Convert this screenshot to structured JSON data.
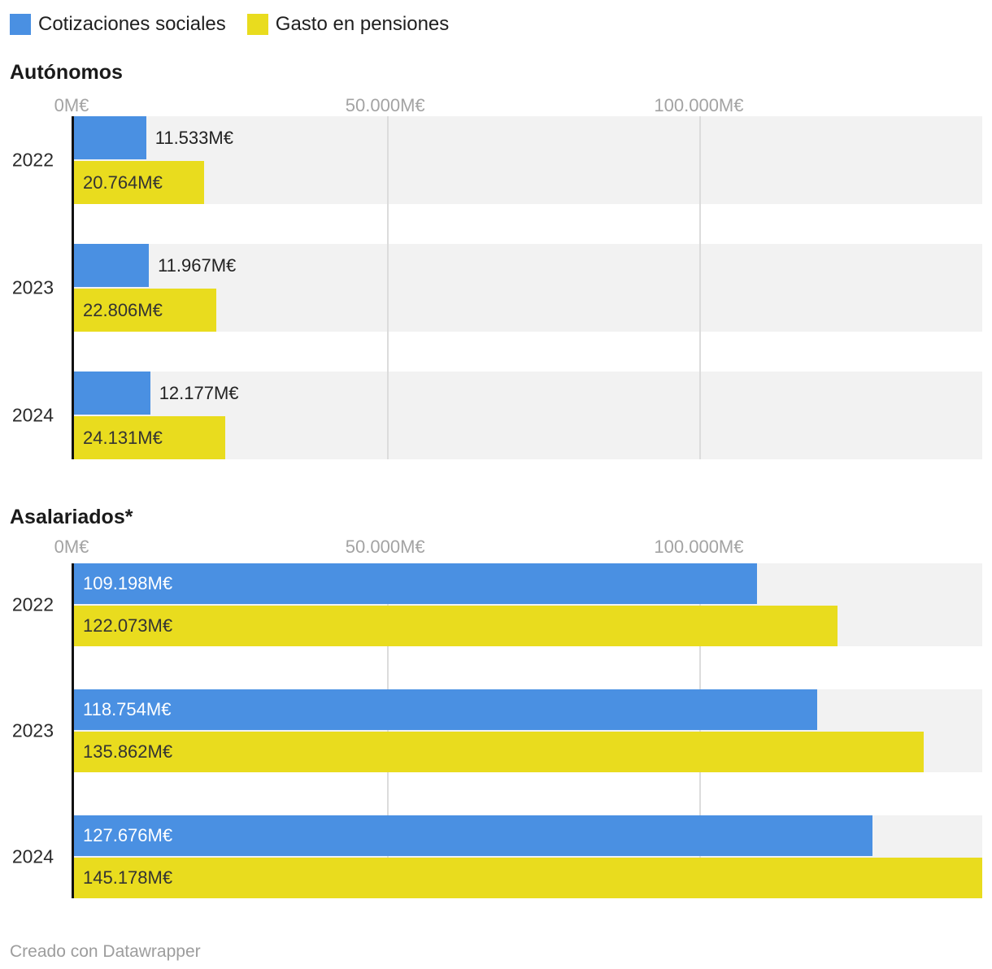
{
  "legend": {
    "items": [
      {
        "label": "Cotizaciones sociales",
        "color": "#4a90e2"
      },
      {
        "label": "Gasto en pensiones",
        "color": "#e9dc1e"
      }
    ]
  },
  "footer": {
    "text": "Creado con Datawrapper"
  },
  "chart_data": {
    "type": "bar",
    "orientation": "horizontal",
    "unit": "M€",
    "legend_position": "top",
    "axis": {
      "min": 0,
      "max": 145178,
      "grid": true,
      "ticks": [
        {
          "value": 0,
          "label": "0M€"
        },
        {
          "value": 50000,
          "label": "50.000M€"
        },
        {
          "value": 100000,
          "label": "100.000M€"
        }
      ]
    },
    "colors": {
      "blue": "#4a90e2",
      "yellow": "#e9dc1e",
      "row_band": "#f2f2f2",
      "gridline": "#dcdcdc",
      "axis_line": "#111111"
    },
    "charts": [
      {
        "title": "Autónomos",
        "categories": [
          "2022",
          "2023",
          "2024"
        ],
        "series": [
          {
            "name": "Cotizaciones sociales",
            "color": "#4a90e2",
            "label_inside": false,
            "label_color": "#222222",
            "values": [
              11533,
              11967,
              12177
            ],
            "labels": [
              "11.533M€",
              "11.967M€",
              "12.177M€"
            ]
          },
          {
            "name": "Gasto en pensiones",
            "color": "#e9dc1e",
            "label_inside": true,
            "label_color": "#333333",
            "values": [
              20764,
              22806,
              24131
            ],
            "labels": [
              "20.764M€",
              "22.806M€",
              "24.131M€"
            ]
          }
        ]
      },
      {
        "title": "Asalariados*",
        "categories": [
          "2022",
          "2023",
          "2024"
        ],
        "series": [
          {
            "name": "Cotizaciones sociales",
            "color": "#4a90e2",
            "label_inside": true,
            "label_color": "#ffffff",
            "values": [
              109198,
              118754,
              127676
            ],
            "labels": [
              "109.198M€",
              "118.754M€",
              "127.676M€"
            ]
          },
          {
            "name": "Gasto en pensiones",
            "color": "#e9dc1e",
            "label_inside": true,
            "label_color": "#333333",
            "values": [
              122073,
              135862,
              145178
            ],
            "labels": [
              "122.073M€",
              "135.862M€",
              "145.178M€"
            ]
          }
        ]
      }
    ]
  }
}
